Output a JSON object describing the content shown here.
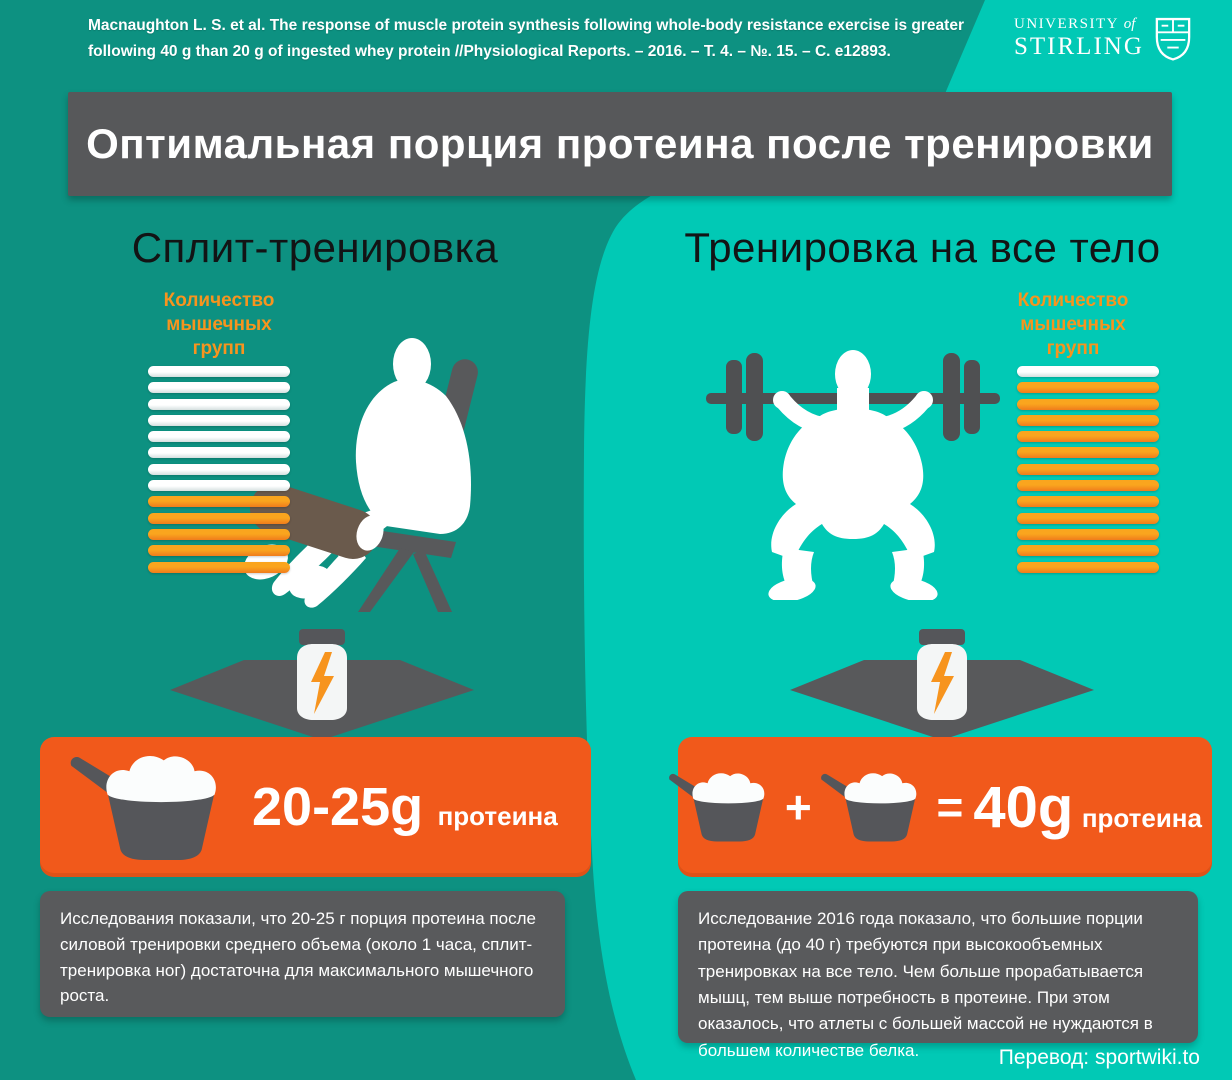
{
  "citation": {
    "line1": "Macnaughton L. S. et al. The response of muscle protein synthesis following whole-body resistance exercise is greater",
    "line2": "following 40 g than 20 g of ingested whey protein //Physiological Reports. – 2016. – Т. 4. – №. 15. – С. e12893."
  },
  "logo": {
    "name": "University of Stirling",
    "word1": "UNIVERSITY",
    "word2": "of",
    "line2": "STIRLING",
    "icon": "stirling-crest-icon"
  },
  "title": "Оптимальная порция протеина после тренировки",
  "footer": "Перевод: sportwiki.to",
  "colors": {
    "teal_dark": "#0D9181",
    "teal_bright": "#01C9B5",
    "orange_accent": "#F7941E",
    "orange_box": "#F1591B",
    "dark_gray": "#58595B",
    "roller_brown": "#6A5A4C",
    "white": "#FFFFFF"
  },
  "left_column": {
    "header": "Сплит-тренировка",
    "muscle_label_lines": [
      "Количество",
      "мышечных",
      "групп"
    ],
    "bars": [
      "white",
      "white",
      "white",
      "white",
      "white",
      "white",
      "white",
      "white",
      "orange",
      "orange",
      "orange",
      "orange",
      "orange"
    ],
    "illustration": "seated-leg-extension-silhouette",
    "dose": {
      "amount": "20-25g",
      "unit": "протеина"
    },
    "description": "Исследования показали, что 20-25 г порция протеина после силовой тренировки среднего объема (около 1 часа, сплит-тренировка ног) достаточна для максимального мышечного роста."
  },
  "right_column": {
    "header": "Тренировка на все тело",
    "muscle_label_lines": [
      "Количество",
      "мышечных",
      "групп"
    ],
    "bars": [
      "white",
      "orange",
      "orange",
      "orange",
      "orange",
      "orange",
      "orange",
      "orange",
      "orange",
      "orange",
      "orange",
      "orange",
      "orange"
    ],
    "illustration": "barbell-squat-silhouette",
    "operators": {
      "plus": "+",
      "equals": "="
    },
    "dose": {
      "amount": "40g",
      "unit": "протеина"
    },
    "description": "Исследование 2016 года показало, что большие порции протеина (до 40 г) требуются при высокообъемных тренировках на все тело. Чем больше прорабатывается мышц, тем выше потребность в протеине. При этом оказалось, что атлеты с большей массой не нуждаются в большем количестве белка."
  }
}
